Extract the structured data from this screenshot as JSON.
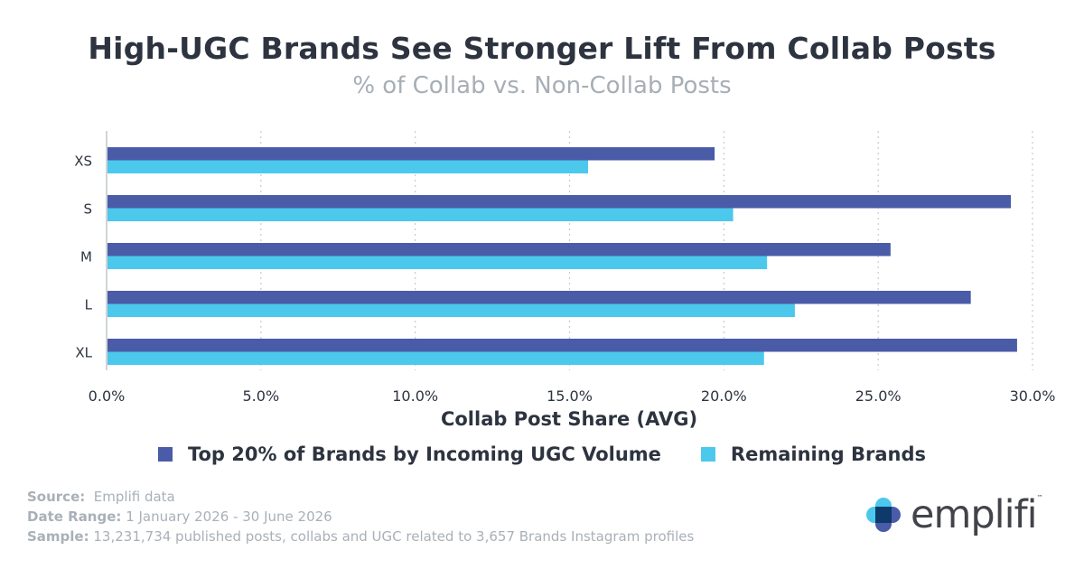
{
  "title": "High-UGC Brands See Stronger Lift From Collab Posts",
  "subtitle": "% of Collab vs. Non-Collab Posts",
  "colors": {
    "series1": "#4a5ba8",
    "series2": "#4bc8ec",
    "grid": "#c5cad0",
    "axis": "#d0d4d8"
  },
  "chart_data": {
    "type": "bar",
    "orientation": "horizontal",
    "categories": [
      "XS",
      "S",
      "M",
      "L",
      "XL"
    ],
    "series": [
      {
        "name": "Top 20% of Brands by Incoming UGC Volume",
        "values": [
          19.7,
          29.3,
          25.4,
          28.0,
          29.5
        ]
      },
      {
        "name": "Remaining Brands",
        "values": [
          15.6,
          20.3,
          21.4,
          22.3,
          21.3
        ]
      }
    ],
    "xlabel": "Collab Post Share (AVG)",
    "ylabel": "",
    "xlim": [
      0,
      30
    ],
    "xticks": [
      0,
      5,
      10,
      15,
      20,
      25,
      30
    ],
    "xtick_labels": [
      "0.0%",
      "5.0%",
      "10.0%",
      "15.0%",
      "20.0%",
      "25.0%",
      "30.0%"
    ],
    "grid": "vertical dotted",
    "legend": "bottom-center"
  },
  "footer": {
    "source_label": "Source:",
    "source_value": "Emplifi data",
    "date_label": "Date Range:",
    "date_value": "1 January 2026 - 30 June 2026",
    "sample_label": "Sample:",
    "sample_value": "13,231,734 published posts, collabs and UGC related to 3,657 Brands Instagram profiles"
  },
  "logo": {
    "text": "emplifi",
    "tm": "™"
  }
}
